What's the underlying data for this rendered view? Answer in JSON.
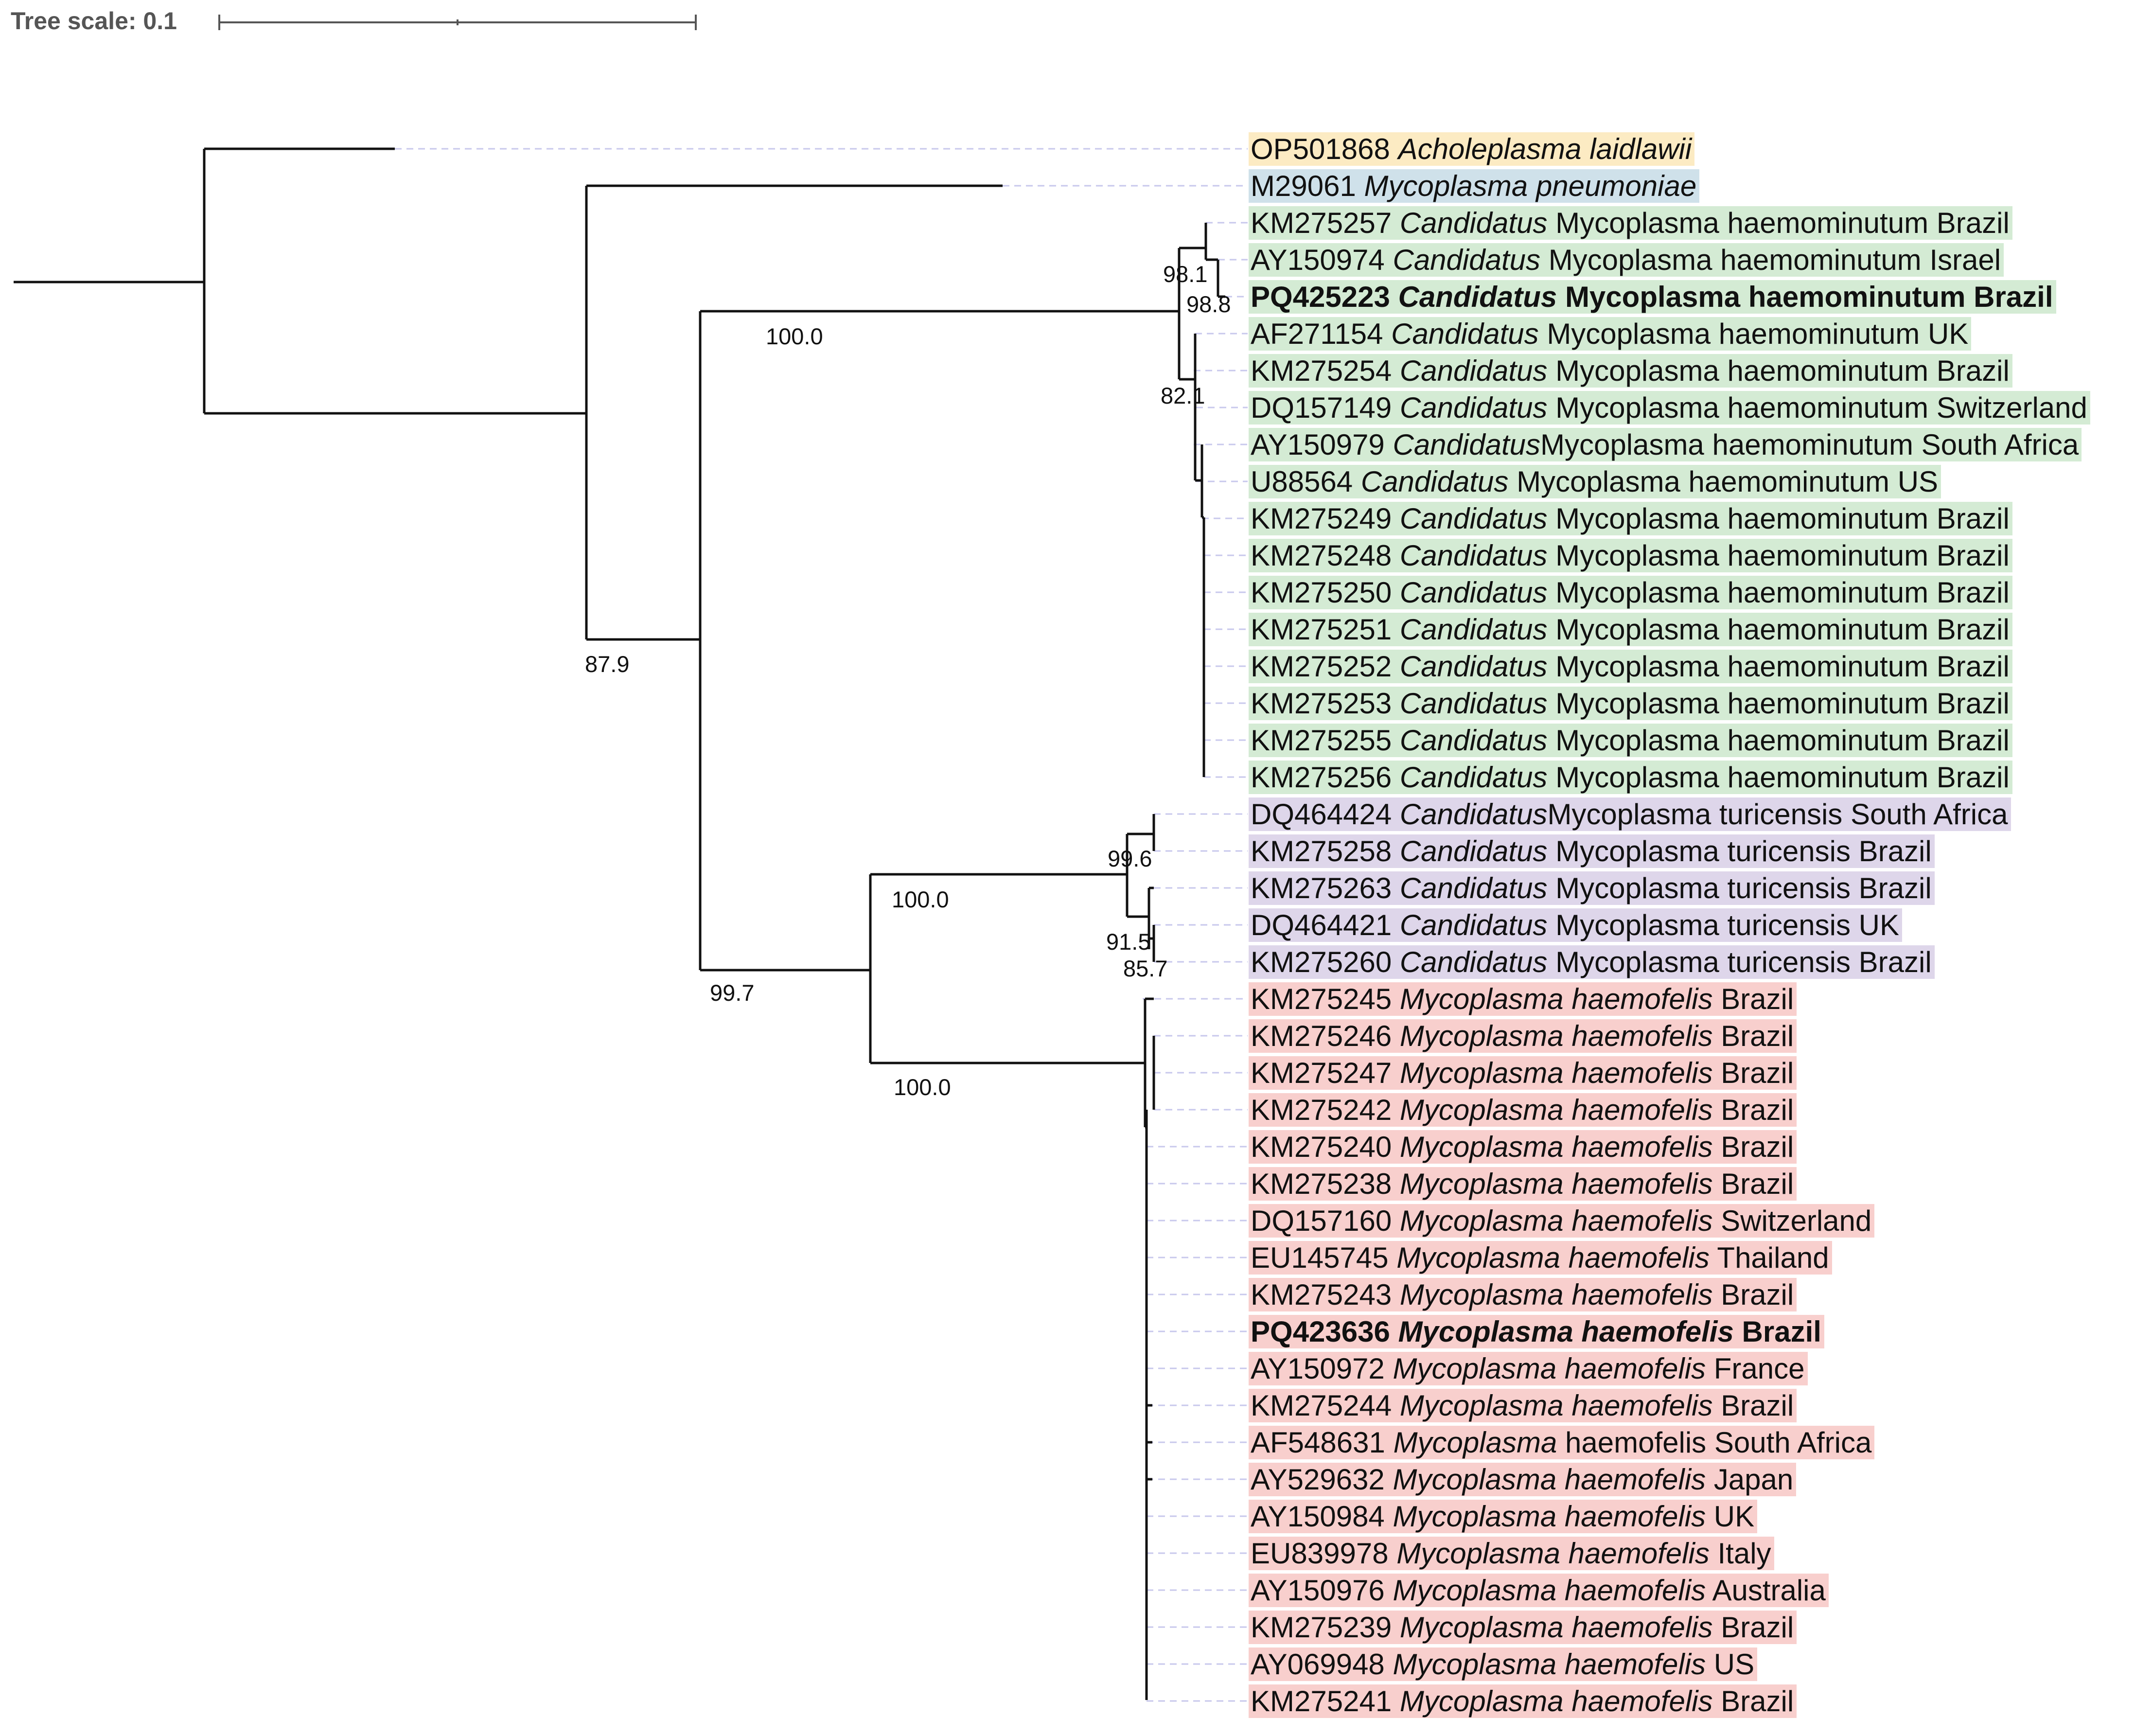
{
  "tree_scale": {
    "label": "Tree scale: 0.1"
  },
  "clade_colors": {
    "outgroup": "#fcebc3",
    "pneumoniae": "#cfe1ea",
    "haemominutum": "#d4ebd4",
    "turicensis": "#ded6ea",
    "haemofelis": "#f8cfcd"
  },
  "leaves": [
    {
      "id": "OP501868 ",
      "gen": "Acholeplasma laidlawii",
      "rest": "",
      "clade": "outgroup",
      "bold": false
    },
    {
      "id": "M29061 ",
      "gen": "Mycoplasma pneumoniae",
      "rest": "",
      "clade": "pneumoniae",
      "bold": false
    },
    {
      "id": "KM275257 ",
      "gen": "Candidatus",
      "rest": " Mycoplasma haemominutum Brazil",
      "clade": "haemominutum",
      "bold": false
    },
    {
      "id": "AY150974 ",
      "gen": "Candidatus",
      "rest": " Mycoplasma haemominutum Israel",
      "clade": "haemominutum",
      "bold": false
    },
    {
      "id": "PQ425223 ",
      "gen": "Candidatus",
      "rest": " Mycoplasma haemominutum Brazil",
      "clade": "haemominutum",
      "bold": true
    },
    {
      "id": "AF271154 ",
      "gen": "Candidatus",
      "rest": " Mycoplasma haemominutum UK",
      "clade": "haemominutum",
      "bold": false
    },
    {
      "id": "KM275254 ",
      "gen": "Candidatus",
      "rest": " Mycoplasma haemominutum Brazil",
      "clade": "haemominutum",
      "bold": false
    },
    {
      "id": "DQ157149 ",
      "gen": "Candidatus",
      "rest": " Mycoplasma haemominutum Switzerland",
      "clade": "haemominutum",
      "bold": false
    },
    {
      "id": "AY150979 ",
      "gen": "Candidatus",
      "rest": "Mycoplasma haemominutum South Africa",
      "clade": "haemominutum",
      "bold": false
    },
    {
      "id": "U88564 ",
      "gen": "Candidatus",
      "rest": " Mycoplasma haemominutum US",
      "clade": "haemominutum",
      "bold": false
    },
    {
      "id": "KM275249 ",
      "gen": "Candidatus",
      "rest": " Mycoplasma haemominutum Brazil",
      "clade": "haemominutum",
      "bold": false
    },
    {
      "id": "KM275248 ",
      "gen": "Candidatus",
      "rest": " Mycoplasma haemominutum Brazil",
      "clade": "haemominutum",
      "bold": false
    },
    {
      "id": "KM275250 ",
      "gen": "Candidatus",
      "rest": " Mycoplasma haemominutum Brazil",
      "clade": "haemominutum",
      "bold": false
    },
    {
      "id": "KM275251 ",
      "gen": "Candidatus",
      "rest": " Mycoplasma haemominutum Brazil",
      "clade": "haemominutum",
      "bold": false
    },
    {
      "id": "KM275252 ",
      "gen": "Candidatus",
      "rest": " Mycoplasma haemominutum Brazil",
      "clade": "haemominutum",
      "bold": false
    },
    {
      "id": "KM275253 ",
      "gen": "Candidatus",
      "rest": " Mycoplasma haemominutum Brazil",
      "clade": "haemominutum",
      "bold": false
    },
    {
      "id": "KM275255 ",
      "gen": "Candidatus",
      "rest": " Mycoplasma haemominutum Brazil",
      "clade": "haemominutum",
      "bold": false
    },
    {
      "id": "KM275256 ",
      "gen": "Candidatus",
      "rest": " Mycoplasma haemominutum Brazil",
      "clade": "haemominutum",
      "bold": false
    },
    {
      "id": "DQ464424 ",
      "gen": "Candidatus",
      "rest": "Mycoplasma turicensis South Africa",
      "clade": "turicensis",
      "bold": false
    },
    {
      "id": "KM275258 ",
      "gen": "Candidatus",
      "rest": " Mycoplasma turicensis Brazil",
      "clade": "turicensis",
      "bold": false
    },
    {
      "id": "KM275263 ",
      "gen": "Candidatus",
      "rest": " Mycoplasma turicensis Brazil",
      "clade": "turicensis",
      "bold": false
    },
    {
      "id": "DQ464421 ",
      "gen": "Candidatus",
      "rest": " Mycoplasma turicensis UK",
      "clade": "turicensis",
      "bold": false
    },
    {
      "id": "KM275260 ",
      "gen": "Candidatus",
      "rest": " Mycoplasma turicensis Brazil",
      "clade": "turicensis",
      "bold": false
    },
    {
      "id": "KM275245 ",
      "gen": "Mycoplasma haemofelis",
      "rest": " Brazil",
      "clade": "haemofelis",
      "bold": false
    },
    {
      "id": "KM275246 ",
      "gen": "Mycoplasma haemofelis",
      "rest": " Brazil",
      "clade": "haemofelis",
      "bold": false
    },
    {
      "id": "KM275247 ",
      "gen": "Mycoplasma haemofelis",
      "rest": " Brazil",
      "clade": "haemofelis",
      "bold": false
    },
    {
      "id": "KM275242 ",
      "gen": "Mycoplasma haemofelis",
      "rest": " Brazil",
      "clade": "haemofelis",
      "bold": false
    },
    {
      "id": "KM275240 ",
      "gen": "Mycoplasma haemofelis",
      "rest": " Brazil",
      "clade": "haemofelis",
      "bold": false
    },
    {
      "id": "KM275238 ",
      "gen": "Mycoplasma haemofelis",
      "rest": " Brazil",
      "clade": "haemofelis",
      "bold": false
    },
    {
      "id": "DQ157160 ",
      "gen": "Mycoplasma haemofelis",
      "rest": " Switzerland",
      "clade": "haemofelis",
      "bold": false
    },
    {
      "id": "EU145745 ",
      "gen": "Mycoplasma haemofelis",
      "rest": " Thailand",
      "clade": "haemofelis",
      "bold": false
    },
    {
      "id": "KM275243 ",
      "gen": "Mycoplasma haemofelis",
      "rest": " Brazil",
      "clade": "haemofelis",
      "bold": false
    },
    {
      "id": "PQ423636 ",
      "gen": "Mycoplasma haemofelis",
      "rest": " Brazil",
      "clade": "haemofelis",
      "bold": true
    },
    {
      "id": "AY150972 ",
      "gen": "Mycoplasma haemofelis",
      "rest": " France",
      "clade": "haemofelis",
      "bold": false
    },
    {
      "id": "KM275244 ",
      "gen": "Mycoplasma haemofelis",
      "rest": " Brazil",
      "clade": "haemofelis",
      "bold": false
    },
    {
      "id": "AF548631 ",
      "gen": "Mycoplasma",
      "rest": " haemofelis South Africa",
      "clade": "haemofelis",
      "bold": false
    },
    {
      "id": "AY529632 ",
      "gen": "Mycoplasma haemofelis",
      "rest": " Japan",
      "clade": "haemofelis",
      "bold": false
    },
    {
      "id": "AY150984 ",
      "gen": "Mycoplasma haemofelis",
      "rest": " UK",
      "clade": "haemofelis",
      "bold": false
    },
    {
      "id": "EU839978 ",
      "gen": "Mycoplasma haemofelis",
      "rest": " Italy",
      "clade": "haemofelis",
      "bold": false
    },
    {
      "id": "AY150976 ",
      "gen": "Mycoplasma haemofelis",
      "rest": " Australia",
      "clade": "haemofelis",
      "bold": false
    },
    {
      "id": "KM275239 ",
      "gen": "Mycoplasma haemofelis",
      "rest": " Brazil",
      "clade": "haemofelis",
      "bold": false
    },
    {
      "id": "AY069948 ",
      "gen": "Mycoplasma haemofelis",
      "rest": " US",
      "clade": "haemofelis",
      "bold": false
    },
    {
      "id": "KM275241 ",
      "gen": "Mycoplasma haemofelis",
      "rest": " Brazil",
      "clade": "haemofelis",
      "bold": false
    }
  ],
  "support_values": [
    "98.1",
    "98.8",
    "100.0",
    "82.1",
    "87.9",
    "99.6",
    "100.0",
    "91.5",
    "85.7",
    "99.7",
    "100.0"
  ]
}
